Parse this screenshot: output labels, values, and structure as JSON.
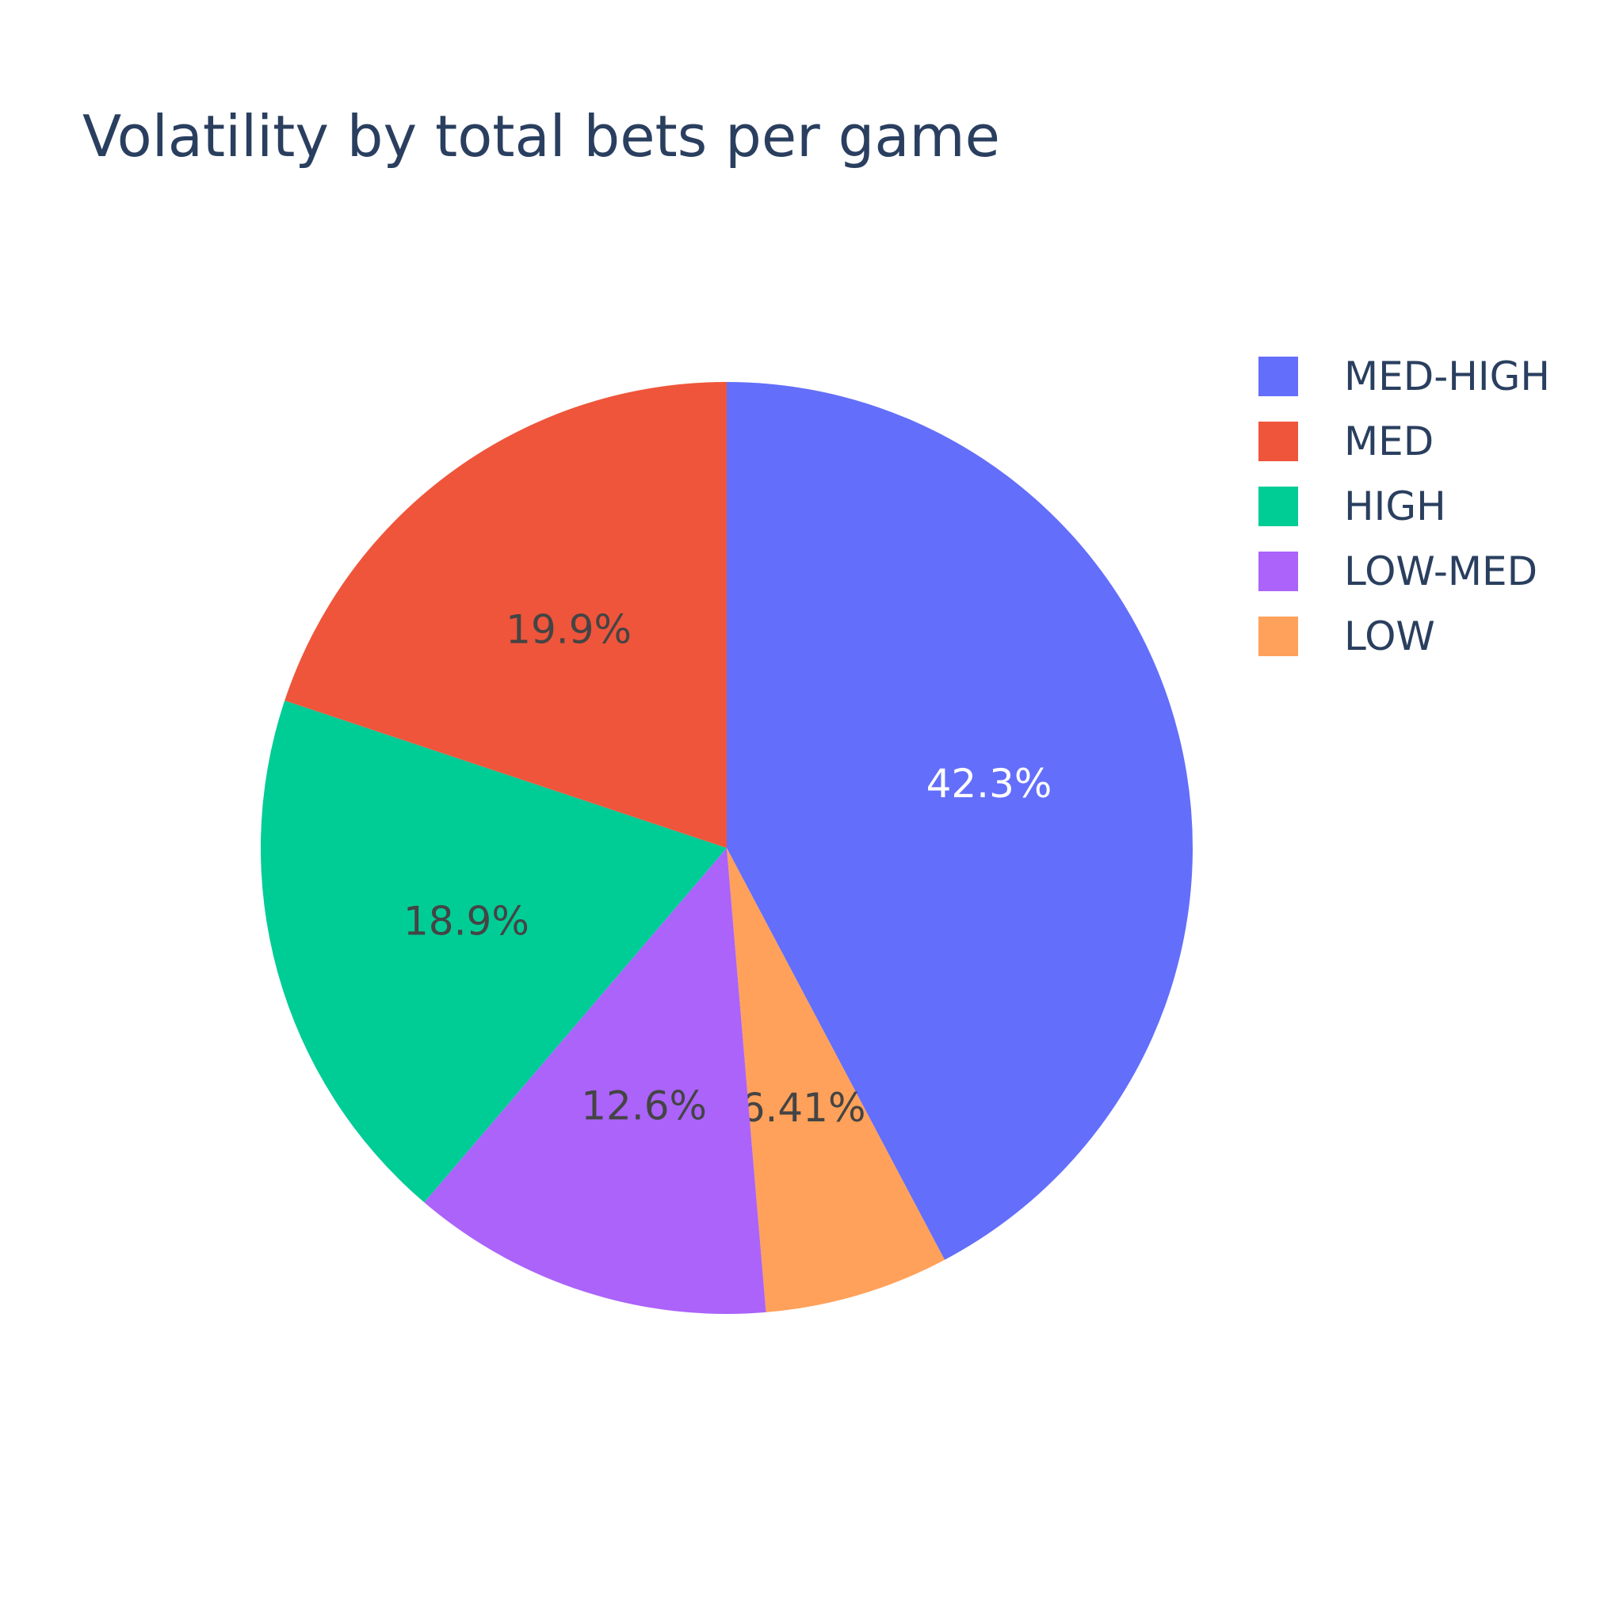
{
  "chart_data": {
    "type": "pie",
    "title": "Volatility by total bets per game",
    "slices": [
      {
        "name": "MED-HIGH",
        "value": 42.3,
        "label": "42.3%",
        "color": "#636efa",
        "label_color": "#ffffff"
      },
      {
        "name": "LOW",
        "value": 6.41,
        "label": "6.41%",
        "color": "#ffa15a",
        "label_color": "#444444"
      },
      {
        "name": "LOW-MED",
        "value": 12.6,
        "label": "12.6%",
        "color": "#ab63fa",
        "label_color": "#444444"
      },
      {
        "name": "HIGH",
        "value": 18.9,
        "label": "18.9%",
        "color": "#00cc96",
        "label_color": "#444444"
      },
      {
        "name": "MED",
        "value": 19.9,
        "label": "19.9%",
        "color": "#ef553b",
        "label_color": "#444444"
      }
    ],
    "legend": {
      "position": "top-right",
      "items": [
        {
          "name": "MED-HIGH",
          "color": "#636efa"
        },
        {
          "name": "MED",
          "color": "#ef553b"
        },
        {
          "name": "HIGH",
          "color": "#00cc96"
        },
        {
          "name": "LOW-MED",
          "color": "#ab63fa"
        },
        {
          "name": "LOW",
          "color": "#ffa15a"
        }
      ]
    },
    "direction": "clockwise",
    "start": "top"
  }
}
